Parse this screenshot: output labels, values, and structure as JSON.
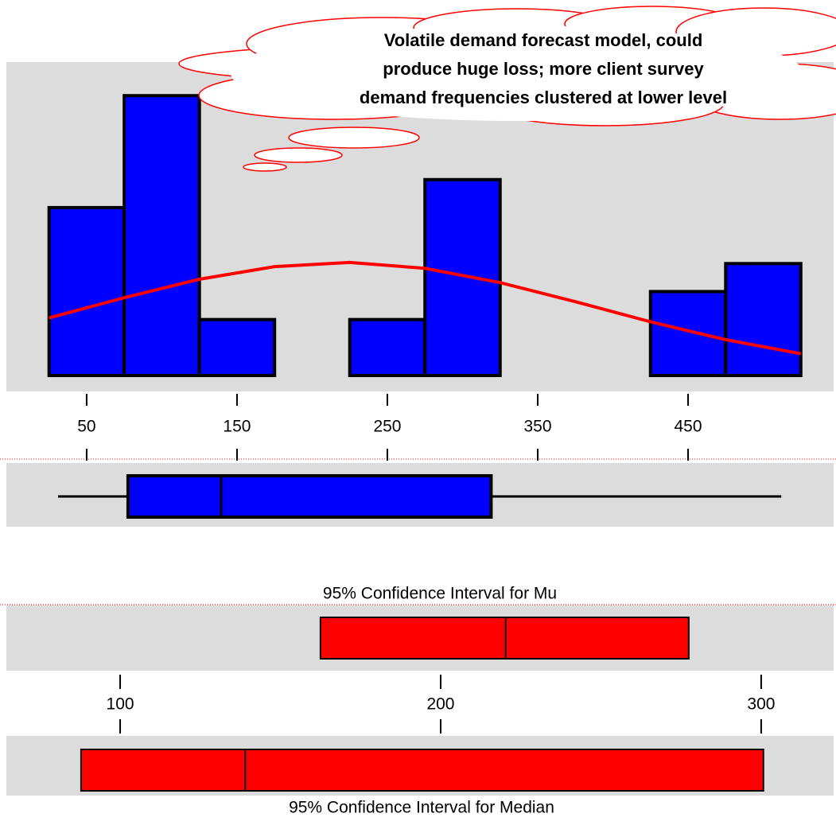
{
  "chart_data": [
    {
      "type": "histogram",
      "bins": [
        25,
        75,
        125,
        175,
        225,
        275,
        325,
        375,
        425,
        475,
        525
      ],
      "values": [
        6,
        10,
        2,
        0,
        2,
        7,
        0,
        0,
        3,
        4
      ],
      "color": "#0000ff",
      "line": {
        "x": [
          25,
          75,
          125,
          175,
          225,
          275,
          325,
          375,
          425,
          475,
          525
        ],
        "values": [
          2.06,
          2.78,
          3.44,
          3.89,
          4.04,
          3.83,
          3.32,
          2.64,
          1.92,
          1.28,
          0.78
        ],
        "color": "#ff0000"
      },
      "xlim": [
        -3.4,
        546.8
      ],
      "xticks": [
        50,
        150,
        250,
        350,
        450
      ],
      "ylim": [
        0,
        11.2
      ],
      "annotation": [
        "Volatile demand forecast model, could",
        "produce huge loss; more client survey",
        "demand frequencies clustered at lower level"
      ]
    },
    {
      "type": "box",
      "whisker_low": 31,
      "q1": 77.5,
      "median": 139.4,
      "q3": 319,
      "whisker_high": 512,
      "color": "#0000ff"
    },
    {
      "type": "interval",
      "title": "95% Confidence Interval for Mu",
      "low": 162.5,
      "center": 220.3,
      "high": 277.4,
      "color": "#ff0000",
      "xlim": [
        64.5,
        322.6
      ],
      "xticks": [
        100,
        200,
        300
      ]
    },
    {
      "type": "interval",
      "title": "95% Confidence Interval for Median",
      "low": 87.8,
      "center": 139,
      "high": 300.7,
      "color": "#ff0000"
    }
  ]
}
